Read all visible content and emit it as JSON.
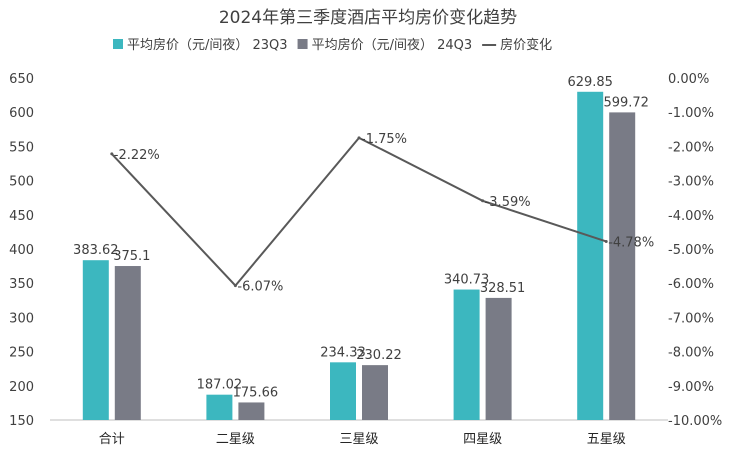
{
  "chart_data": {
    "type": "bar",
    "title": "2024年第三季度酒店平均房价变化趋势",
    "categories": [
      "合计",
      "二星级",
      "三星级",
      "四星级",
      "五星级"
    ],
    "series": [
      {
        "name": "平均房价（元/间夜） 23Q3",
        "type": "bar",
        "axis": "left",
        "values": [
          383.62,
          187.02,
          234.33,
          340.73,
          629.85
        ],
        "color": "#3cb7bf"
      },
      {
        "name": "平均房价（元/间夜） 24Q3",
        "type": "bar",
        "axis": "left",
        "values": [
          375.1,
          175.66,
          230.22,
          328.51,
          599.72
        ],
        "color": "#797b86"
      },
      {
        "name": "房价变化",
        "type": "line",
        "axis": "right",
        "values": [
          -2.22,
          -6.07,
          -1.75,
          -3.59,
          -4.78
        ],
        "color": "#595959"
      }
    ],
    "bar_labels": [
      [
        "383.62",
        "187.02",
        "234.33",
        "340.73",
        "629.85"
      ],
      [
        "375.1",
        "175.66",
        "230.22",
        "328.51",
        "599.72"
      ]
    ],
    "line_labels": [
      "-2.22%",
      "-6.07%",
      "-1.75%",
      "-3.59%",
      "-4.78%"
    ],
    "ylim_left": [
      150,
      650
    ],
    "ylim_right": [
      -10,
      0
    ],
    "yticks_left": [
      "150",
      "200",
      "250",
      "300",
      "350",
      "400",
      "450",
      "500",
      "550",
      "600",
      "650"
    ],
    "yticks_right": [
      "0.00%",
      "-1.00%",
      "-2.00%",
      "-3.00%",
      "-4.00%",
      "-5.00%",
      "-6.00%",
      "-7.00%",
      "-8.00%",
      "-9.00%",
      "-10.00%"
    ],
    "grid": false,
    "legend_position": "top"
  }
}
